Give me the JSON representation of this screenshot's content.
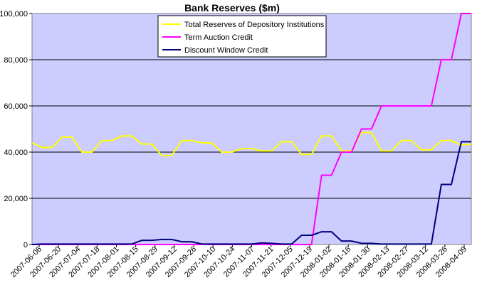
{
  "chart_data": {
    "type": "line",
    "title": "Bank Reserves ($m)",
    "xlabel": "",
    "ylabel": "",
    "ylim": [
      0,
      100000
    ],
    "y_ticks": [
      "0",
      "20,000",
      "40,000",
      "60,000",
      "80,000",
      "100,000"
    ],
    "x_tick_labels": [
      "2007-06-06",
      "2007-06-20",
      "2007-07-04",
      "2007-07-18",
      "2007-08-01",
      "2007-08-15",
      "2007-08-29",
      "2007-09-12",
      "2007-09-26",
      "2007-10-10",
      "2007-10-24",
      "2007-11-07",
      "2007-11-21",
      "2007-12-05",
      "2007-12-19",
      "2008-01-02",
      "2008-01-16",
      "2008-01-30",
      "2008-02-13",
      "2008-02-27",
      "2008-03-12",
      "2008-03-26",
      "2008-04-09"
    ],
    "grid": "horizontal",
    "plot_background": "#ccccff",
    "legend_position": "top-center",
    "series": [
      {
        "name": "Total Reserves of Depository Institutions",
        "color": "#ffff00",
        "values": [
          44000,
          42000,
          42000,
          46500,
          46500,
          40000,
          40000,
          45000,
          45000,
          47000,
          47000,
          43500,
          43500,
          38500,
          38500,
          45000,
          45000,
          44000,
          44000,
          40000,
          40000,
          41500,
          41500,
          40500,
          40500,
          44500,
          44500,
          39000,
          39000,
          47000,
          47000,
          40500,
          40500,
          48500,
          48500,
          40500,
          40500,
          45000,
          45000,
          41000,
          41000,
          45000,
          45000,
          43000,
          43500
        ]
      },
      {
        "name": "Term Auction Credit",
        "color": "#ff00ff",
        "values": [
          0,
          0,
          0,
          0,
          0,
          0,
          0,
          0,
          0,
          0,
          0,
          0,
          0,
          0,
          0,
          0,
          0,
          0,
          0,
          0,
          0,
          0,
          0,
          0,
          0,
          0,
          0,
          0,
          0,
          30000,
          30000,
          40000,
          40000,
          50000,
          50000,
          60000,
          60000,
          60000,
          60000,
          60000,
          60000,
          80000,
          80000,
          100000,
          100000
        ]
      },
      {
        "name": "Discount Window Credit",
        "color": "#000080",
        "values": [
          0,
          200,
          200,
          200,
          200,
          200,
          200,
          200,
          200,
          200,
          200,
          1800,
          1800,
          2200,
          2200,
          1200,
          1200,
          200,
          200,
          200,
          200,
          200,
          200,
          700,
          500,
          200,
          200,
          4000,
          4000,
          5500,
          5500,
          1500,
          1500,
          500,
          500,
          200,
          200,
          200,
          200,
          200,
          200,
          26000,
          26000,
          44500,
          44500
        ]
      }
    ]
  }
}
